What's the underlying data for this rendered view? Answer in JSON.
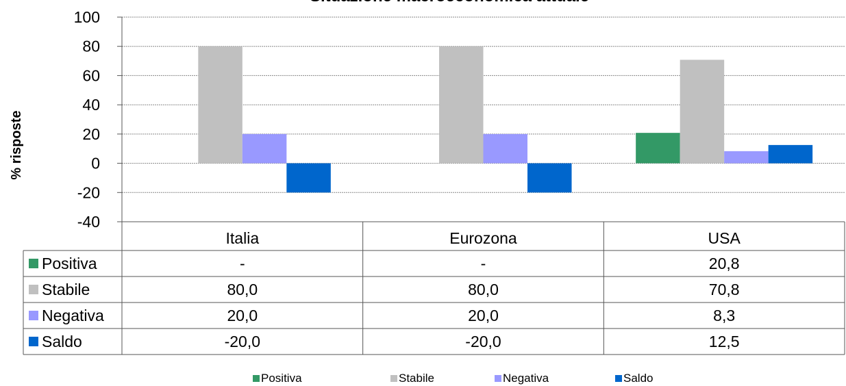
{
  "chart_data": {
    "type": "bar",
    "title": "Situazione macroeconomica attuale",
    "ylabel": "% risposte",
    "xlabel": "",
    "ylim": [
      -40,
      100
    ],
    "yticks": [
      100,
      80,
      60,
      40,
      20,
      0,
      -20,
      -40
    ],
    "ytick_labels": [
      "100",
      "80",
      "60",
      "40",
      "20",
      "0",
      "-20",
      "-40"
    ],
    "grid": true,
    "legend_position": "bottom",
    "categories": [
      "Italia",
      "Eurozona",
      "USA"
    ],
    "series": [
      {
        "name": "Positiva",
        "color": "#339966",
        "values": [
          null,
          null,
          20.8
        ],
        "labels": [
          "-",
          "-",
          "20,8"
        ]
      },
      {
        "name": "Stabile",
        "color": "#c0c0c0",
        "values": [
          80.0,
          80.0,
          70.8
        ],
        "labels": [
          "80,0",
          "80,0",
          "70,8"
        ]
      },
      {
        "name": "Negativa",
        "color": "#9999ff",
        "values": [
          20.0,
          20.0,
          8.3
        ],
        "labels": [
          "20,0",
          "20,0",
          "8,3"
        ]
      },
      {
        "name": "Saldo",
        "color": "#0066cc",
        "values": [
          -20.0,
          -20.0,
          12.5
        ],
        "labels": [
          "-20,0",
          "-20,0",
          "12,5"
        ]
      }
    ]
  }
}
